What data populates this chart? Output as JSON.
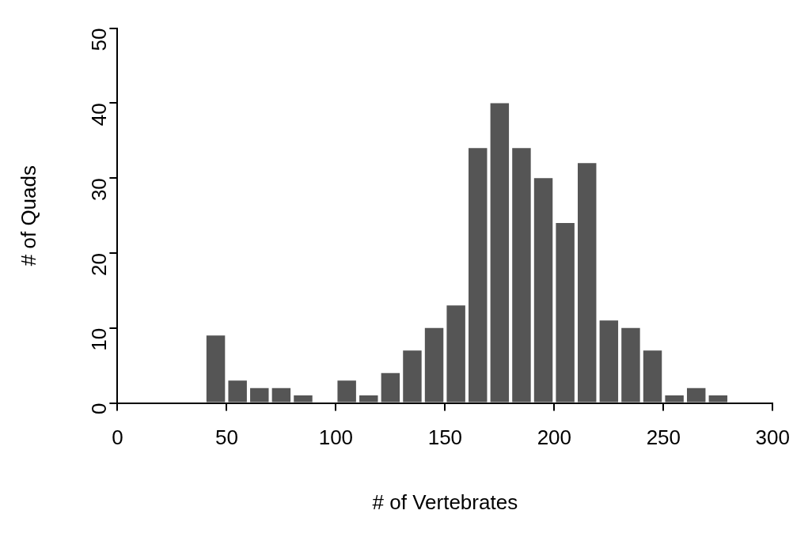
{
  "chart_data": {
    "type": "histogram",
    "xlabel": "# of Vertebrates",
    "ylabel": "# of Quads",
    "bins": [
      40,
      50,
      60,
      70,
      80,
      90,
      100,
      110,
      120,
      130,
      140,
      150,
      160,
      170,
      180,
      190,
      200,
      210,
      220,
      230,
      240,
      250,
      260,
      270,
      280
    ],
    "values": [
      9,
      3,
      2,
      2,
      1,
      0,
      3,
      1,
      4,
      7,
      10,
      13,
      34,
      40,
      34,
      30,
      24,
      32,
      11,
      10,
      7,
      1,
      2,
      1
    ],
    "color": "#555555",
    "xlim": [
      0,
      300
    ],
    "xticks": [
      0,
      50,
      100,
      150,
      200,
      250,
      300
    ],
    "ylim": [
      0,
      50
    ],
    "yticks": [
      0,
      10,
      20,
      30,
      40,
      50
    ],
    "grid": false,
    "legend": false
  }
}
